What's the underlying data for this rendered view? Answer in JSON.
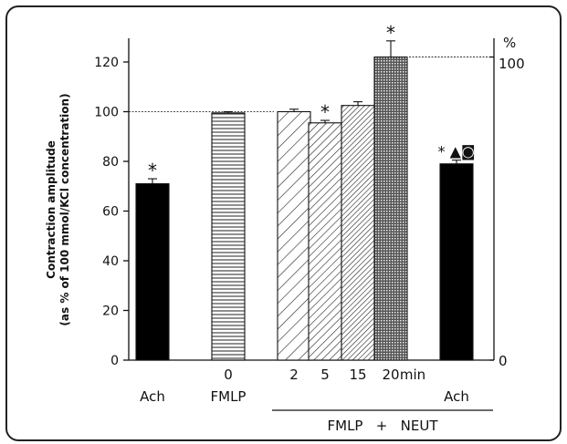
{
  "chart_data": {
    "type": "bar",
    "ylabel_line1": "Contraction amplitude",
    "ylabel_line2": "(as % of 100 mmol/KCl concentration)",
    "ylim": [
      0,
      120
    ],
    "yticks": [
      "0",
      "20",
      "40",
      "60",
      "80",
      "100",
      "120"
    ],
    "right_axis": {
      "unit": "%",
      "top": "100",
      "bottom": "0"
    },
    "reference_line": 100,
    "bars": [
      {
        "id": "ach-1",
        "value": 71,
        "error": 2.0,
        "pattern": "solid",
        "mark": "*",
        "label_top": "",
        "label_bottom": "Ach"
      },
      {
        "id": "fmlp-0",
        "value": 99.5,
        "error": 0.5,
        "pattern": "hlines",
        "mark": "",
        "label_top": "0",
        "label_bottom": "FMLP"
      },
      {
        "id": "neut-2",
        "value": 100,
        "error": 1.0,
        "pattern": "diag-sparse",
        "mark": "",
        "label_top": "2",
        "label_bottom": ""
      },
      {
        "id": "neut-5",
        "value": 95.5,
        "error": 1.0,
        "pattern": "diag-medium",
        "mark": "*",
        "label_top": "5",
        "label_bottom": ""
      },
      {
        "id": "neut-15",
        "value": 102.5,
        "error": 1.5,
        "pattern": "diag-dense",
        "mark": "",
        "label_top": "15",
        "label_bottom": ""
      },
      {
        "id": "neut-20",
        "value": 122,
        "error": 6.5,
        "pattern": "crosshatch",
        "mark": "*",
        "label_top": "20",
        "label_bottom": ""
      },
      {
        "id": "ach-2",
        "value": 79,
        "error": 1.5,
        "pattern": "solid",
        "mark": "* ▲◙",
        "label_top": "",
        "label_bottom": "Ach"
      }
    ],
    "min_label": "min",
    "group_label": "FMLP   +   NEUT"
  }
}
